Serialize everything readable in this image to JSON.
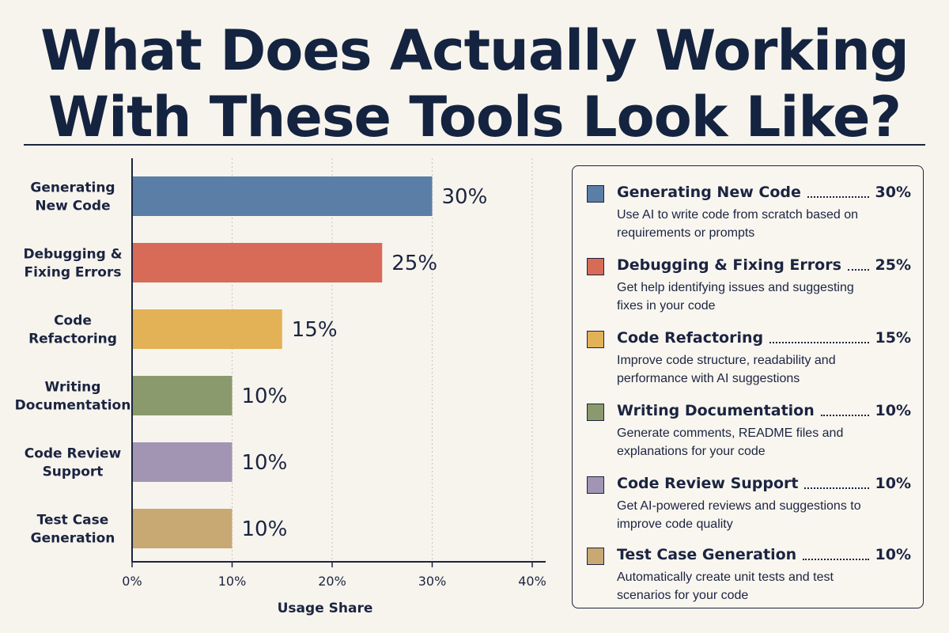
{
  "title_line1": "What Does Actually Working",
  "title_line2": "With These Tools Look Like?",
  "colors": {
    "background": "#f7f4ee",
    "text": "#1b2440",
    "bars": [
      "#5b7ea6",
      "#d86b58",
      "#e3b156",
      "#8a9a6c",
      "#a295b3",
      "#c8a873"
    ]
  },
  "chart_data": {
    "type": "bar",
    "orientation": "horizontal",
    "categories": [
      "Generating New Code",
      "Debugging & Fixing Errors",
      "Code Refactoring",
      "Writing Documentation",
      "Code Review Support",
      "Test Case Generation"
    ],
    "category_lines": [
      [
        "Generating",
        "New Code"
      ],
      [
        "Debugging &",
        "Fixing Errors"
      ],
      [
        "Code",
        "Refactoring"
      ],
      [
        "Writing",
        "Documentation"
      ],
      [
        "Code Review",
        "Support"
      ],
      [
        "Test Case",
        "Generation"
      ]
    ],
    "values": [
      30,
      25,
      15,
      10,
      10,
      10
    ],
    "value_labels": [
      "30%",
      "25%",
      "15%",
      "10%",
      "10%",
      "10%"
    ],
    "xlim": [
      0,
      40
    ],
    "x_ticks": [
      "0%",
      "10%",
      "20%",
      "30%",
      "40%"
    ],
    "xlabel": "Usage Share",
    "grid": "vertical dotted"
  },
  "legend": [
    {
      "name": "Generating New Code",
      "pct": "30%",
      "desc": "Use AI to write code from scratch based on requirements or prompts"
    },
    {
      "name": "Debugging & Fixing Errors",
      "pct": "25%",
      "desc": "Get help identifying issues and suggesting fixes in your code"
    },
    {
      "name": "Code Refactoring",
      "pct": "15%",
      "desc": "Improve code structure, readability and performance with AI suggestions"
    },
    {
      "name": "Writing Documentation",
      "pct": "10%",
      "desc": "Generate comments, README files and explanations for your code"
    },
    {
      "name": "Code Review Support",
      "pct": "10%",
      "desc": "Get AI-powered reviews and suggestions to improve code quality"
    },
    {
      "name": "Test Case Generation",
      "pct": "10%",
      "desc": "Automatically create unit tests and test scenarios for your code"
    }
  ]
}
